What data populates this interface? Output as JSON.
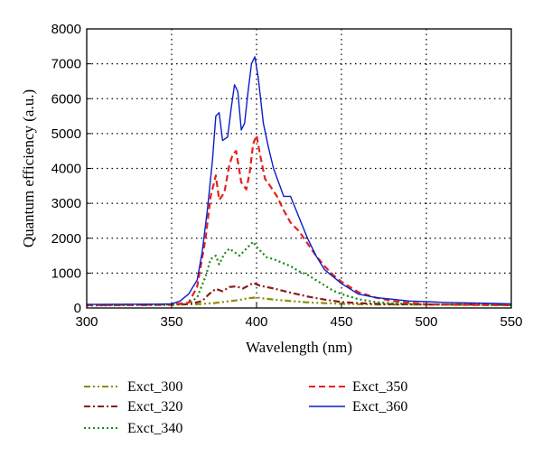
{
  "chart_data": {
    "type": "line",
    "xlabel": "Wavelength (nm)",
    "ylabel": "Quantum efficiency (a.u.)",
    "xlim": [
      300,
      550
    ],
    "ylim": [
      0,
      8000
    ],
    "xticks": [
      300,
      350,
      400,
      450,
      500,
      550
    ],
    "yticks": [
      0,
      1000,
      2000,
      3000,
      4000,
      5000,
      6000,
      7000,
      8000
    ],
    "grid": "dotted",
    "legend_position": "below plot",
    "series": [
      {
        "name": "Exct_300",
        "color": "#8c8c00",
        "dash": "dash-dot-dot",
        "x": [
          300,
          350,
          365,
          375,
          380,
          385,
          390,
          395,
          400,
          405,
          410,
          420,
          430,
          440,
          450,
          460,
          470,
          480,
          500,
          520,
          550
        ],
        "y": [
          90,
          100,
          110,
          140,
          170,
          200,
          230,
          280,
          300,
          270,
          240,
          200,
          160,
          140,
          120,
          110,
          100,
          100,
          100,
          100,
          100
        ]
      },
      {
        "name": "Exct_320",
        "color": "#8b1a1a",
        "dash": "dash-dot",
        "x": [
          300,
          350,
          360,
          368,
          372,
          376,
          380,
          384,
          388,
          392,
          396,
          398,
          402,
          406,
          410,
          415,
          420,
          430,
          440,
          450,
          460,
          470,
          480,
          500,
          520,
          550
        ],
        "y": [
          80,
          90,
          110,
          200,
          400,
          550,
          480,
          600,
          620,
          560,
          660,
          720,
          640,
          600,
          560,
          500,
          440,
          330,
          240,
          170,
          140,
          120,
          110,
          100,
          100,
          90
        ]
      },
      {
        "name": "Exct_340",
        "color": "#148a14",
        "dash": "dotted",
        "x": [
          300,
          350,
          360,
          365,
          370,
          373,
          376,
          378,
          381,
          384,
          387,
          390,
          393,
          396,
          398,
          400,
          403,
          406,
          410,
          415,
          420,
          425,
          430,
          435,
          440,
          445,
          450,
          460,
          470,
          480,
          500,
          520,
          550
        ],
        "y": [
          70,
          90,
          130,
          300,
          900,
          1400,
          1500,
          1250,
          1550,
          1700,
          1600,
          1500,
          1650,
          1800,
          1900,
          1750,
          1600,
          1450,
          1400,
          1300,
          1200,
          1050,
          950,
          800,
          650,
          500,
          400,
          250,
          170,
          130,
          100,
          90,
          80
        ]
      },
      {
        "name": "Exct_350",
        "color": "#e62020",
        "dash": "dashed",
        "x": [
          300,
          350,
          360,
          365,
          370,
          373,
          376,
          378,
          381,
          384,
          386,
          388,
          391,
          394,
          396,
          398,
          400,
          402,
          405,
          408,
          412,
          416,
          420,
          425,
          430,
          435,
          440,
          445,
          450,
          455,
          460,
          470,
          480,
          490,
          500,
          520,
          550
        ],
        "y": [
          80,
          100,
          150,
          600,
          2000,
          3200,
          3800,
          3100,
          3300,
          4100,
          4400,
          4500,
          3600,
          3400,
          3900,
          4700,
          4950,
          4400,
          3700,
          3500,
          3200,
          2800,
          2450,
          2200,
          1850,
          1500,
          1200,
          950,
          750,
          600,
          450,
          300,
          200,
          150,
          110,
          90,
          80
        ]
      },
      {
        "name": "Exct_360",
        "color": "#0a1fc8",
        "dash": "solid",
        "x": [
          300,
          340,
          350,
          355,
          360,
          365,
          368,
          371,
          374,
          376,
          378,
          380,
          383,
          385,
          387,
          389,
          391,
          393,
          395,
          397,
          399,
          401,
          404,
          407,
          410,
          413,
          416,
          420,
          425,
          430,
          435,
          440,
          445,
          450,
          455,
          460,
          470,
          480,
          490,
          500,
          510,
          520,
          530,
          540,
          550
        ],
        "y": [
          100,
          110,
          120,
          200,
          400,
          800,
          1600,
          2800,
          4200,
          5500,
          5600,
          4800,
          4900,
          5700,
          6400,
          6200,
          5100,
          5300,
          6200,
          7000,
          7200,
          6600,
          5300,
          4600,
          4000,
          3600,
          3200,
          3200,
          2600,
          2000,
          1500,
          1100,
          900,
          700,
          550,
          400,
          300,
          250,
          200,
          180,
          160,
          150,
          140,
          130,
          120
        ]
      }
    ]
  }
}
